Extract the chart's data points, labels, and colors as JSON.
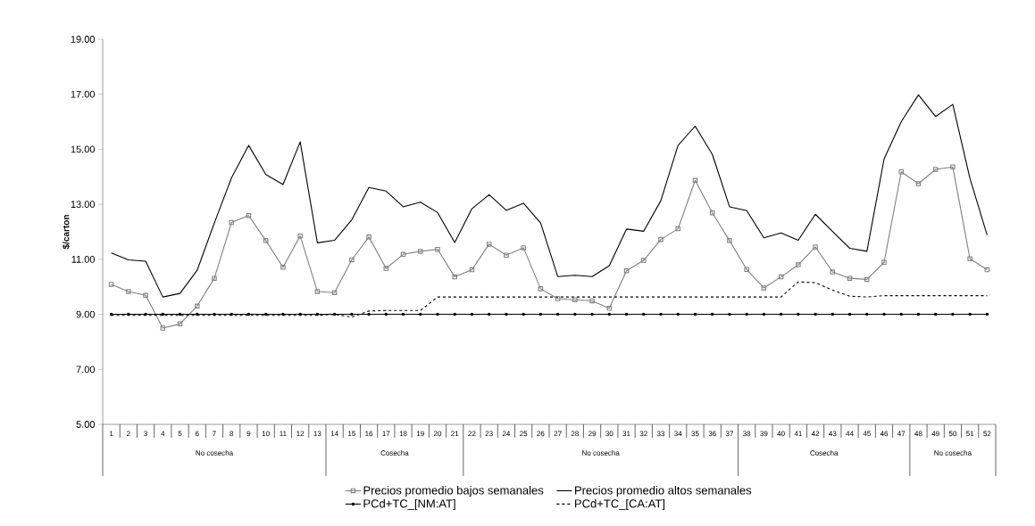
{
  "chart_data": {
    "type": "line",
    "ylabel": "$/carton",
    "categories": [
      "1",
      "2",
      "3",
      "4",
      "5",
      "6",
      "7",
      "8",
      "9",
      "10",
      "11",
      "12",
      "13",
      "14",
      "15",
      "16",
      "17",
      "18",
      "19",
      "20",
      "21",
      "22",
      "23",
      "24",
      "25",
      "26",
      "27",
      "28",
      "29",
      "30",
      "31",
      "32",
      "33",
      "34",
      "35",
      "36",
      "37",
      "38",
      "39",
      "40",
      "41",
      "42",
      "43",
      "44",
      "45",
      "46",
      "47",
      "48",
      "49",
      "50",
      "51",
      "52"
    ],
    "ylim": [
      5,
      19
    ],
    "yticks": [
      {
        "value": 5,
        "label": "5.00"
      },
      {
        "value": 7,
        "label": "7.00"
      },
      {
        "value": 9,
        "label": "9.00"
      },
      {
        "value": 11,
        "label": "11.00"
      },
      {
        "value": 13,
        "label": "13.00"
      },
      {
        "value": 15,
        "label": "15.00"
      },
      {
        "value": 17,
        "label": "17.00"
      },
      {
        "value": 19,
        "label": "19.00"
      }
    ],
    "grid": false,
    "legend": "bottom",
    "annotations": [
      "No cosecha",
      "Cosecha",
      "No cosecha",
      "Cosecha",
      "No cosecha"
    ],
    "series": [
      {
        "name": "Precios promedio bajos semanales",
        "color": "#808080",
        "marker": "square",
        "line_style": "solid",
        "values": [
          10.09,
          9.83,
          9.69,
          8.5,
          8.65,
          9.3,
          10.31,
          12.34,
          12.59,
          11.68,
          10.71,
          11.85,
          9.83,
          9.79,
          10.98,
          11.81,
          10.67,
          11.18,
          11.29,
          11.36,
          10.36,
          10.62,
          11.55,
          11.15,
          11.42,
          9.93,
          9.57,
          9.53,
          9.49,
          9.22,
          10.58,
          10.96,
          11.72,
          12.11,
          13.87,
          12.69,
          11.68,
          10.63,
          9.96,
          10.36,
          10.8,
          11.45,
          10.54,
          10.31,
          10.27,
          10.89,
          14.18,
          13.75,
          14.27,
          14.36,
          11.02,
          10.62
        ]
      },
      {
        "name": "Precios promedio altos semanales",
        "color": "#000000",
        "marker": "none",
        "line_style": "solid",
        "values": [
          11.23,
          10.98,
          10.93,
          9.63,
          9.76,
          10.6,
          12.32,
          13.96,
          15.14,
          14.08,
          13.72,
          15.27,
          11.6,
          11.69,
          12.43,
          13.61,
          13.48,
          12.91,
          13.08,
          12.7,
          11.61,
          12.84,
          13.35,
          12.78,
          13.04,
          12.32,
          10.37,
          10.42,
          10.37,
          10.77,
          12.1,
          12.02,
          13.13,
          15.14,
          15.84,
          14.81,
          12.91,
          12.77,
          11.78,
          11.96,
          11.69,
          12.64,
          12.01,
          11.4,
          11.29,
          14.65,
          16.0,
          16.98,
          16.19,
          16.63,
          13.94,
          11.88
        ]
      },
      {
        "name": "PCd+TC_[NM:AT]",
        "color": "#000000",
        "marker": "circle",
        "line_style": "solid",
        "values": [
          9,
          9,
          9,
          9,
          9,
          9,
          9,
          9,
          9,
          9,
          9,
          9,
          9,
          9,
          9,
          9,
          9,
          9,
          9,
          9,
          9,
          9,
          9,
          9,
          9,
          9,
          9,
          9,
          9,
          9,
          9,
          9,
          9,
          9,
          9,
          9,
          9,
          9,
          9,
          9,
          9,
          9,
          9,
          9,
          9,
          9,
          9,
          9,
          9,
          9,
          9,
          9
        ]
      },
      {
        "name": "PCd+TC_[CA:AT]",
        "color": "#000000",
        "marker": "none",
        "line_style": "dashed",
        "values": [
          8.96,
          8.96,
          8.96,
          8.96,
          8.96,
          8.96,
          8.96,
          8.96,
          8.96,
          8.96,
          8.96,
          8.96,
          8.96,
          9.0,
          8.9,
          9.12,
          9.14,
          9.14,
          9.14,
          9.63,
          9.63,
          9.63,
          9.63,
          9.63,
          9.63,
          9.63,
          9.63,
          9.63,
          9.63,
          9.63,
          9.63,
          9.63,
          9.63,
          9.63,
          9.63,
          9.63,
          9.63,
          9.63,
          9.63,
          9.63,
          10.18,
          10.15,
          9.88,
          9.66,
          9.63,
          9.68,
          9.68,
          9.68,
          9.68,
          9.68,
          9.68,
          9.68
        ]
      }
    ]
  }
}
